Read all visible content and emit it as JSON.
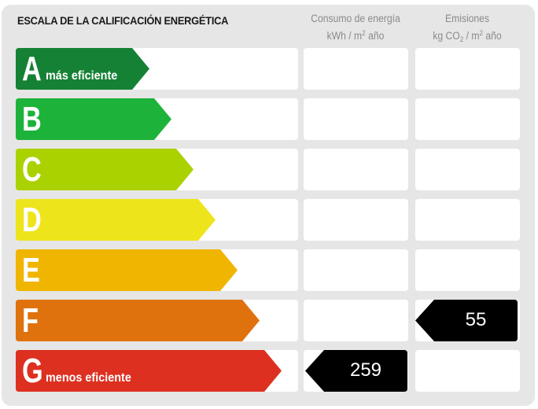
{
  "title": "ESCALA DE LA CALIFICACIÓN ENERGÉTICA",
  "columns": {
    "energy": {
      "line1": "Consumo de energía",
      "line2_pre": "kWh / m",
      "line2_sup": "2",
      "line2_post": " año"
    },
    "emissions": {
      "line1": "Emisiones",
      "line2_pre": "kg CO",
      "line2_sub": "2",
      "line2_mid": " / m",
      "line2_sup": "2",
      "line2_post": " año"
    }
  },
  "ratings": [
    {
      "letter": "A",
      "label": "más eficiente",
      "color": "#158135"
    },
    {
      "letter": "B",
      "label": "",
      "color": "#1db33a"
    },
    {
      "letter": "C",
      "label": "",
      "color": "#aad200"
    },
    {
      "letter": "D",
      "label": "",
      "color": "#eee41c"
    },
    {
      "letter": "E",
      "label": "",
      "color": "#f0b500"
    },
    {
      "letter": "F",
      "label": "",
      "color": "#e0720e"
    },
    {
      "letter": "G",
      "label": "menos eficiente",
      "color": "#dd3021"
    }
  ],
  "energy_consumption": {
    "rating": "G",
    "value": "259"
  },
  "emissions": {
    "rating": "F",
    "value": "55"
  }
}
